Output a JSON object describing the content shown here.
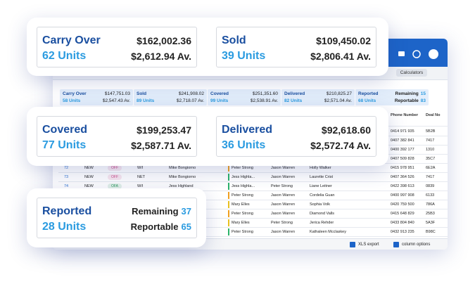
{
  "cards": [
    {
      "boxes": [
        {
          "label": "Carry Over",
          "units": "62 Units",
          "total": "$162,002.36",
          "average": "$2,612.94 Av."
        },
        {
          "label": "Sold",
          "units": "39 Units",
          "total": "$109,450.02",
          "average": "$2,806.41 Av."
        }
      ]
    },
    {
      "boxes": [
        {
          "label": "Covered",
          "units": "77 Units",
          "total": "$199,253.47",
          "average": "$2,587.71 Av."
        },
        {
          "label": "Delivered",
          "units": "36 Units",
          "total": "$92,618.60",
          "average": "$2,572.74 Av."
        }
      ]
    },
    {
      "boxes": [
        {
          "label": "Reported",
          "units": "28 Units",
          "remaining_label": "Remaining",
          "remaining": "37",
          "reportable_label": "Reportable",
          "reportable": "65"
        }
      ]
    }
  ],
  "app": {
    "calculators": "Calculators",
    "summary": [
      {
        "label": "Carry Over",
        "units": "58 Units",
        "total": "$147,751.03",
        "average": "$2,547.43 Av."
      },
      {
        "label": "Sold",
        "units": "89 Units",
        "total": "$241,908.02",
        "average": "$2,718.07 Av."
      },
      {
        "label": "Covered",
        "units": "99 Units",
        "total": "$251,351.60",
        "average": "$2,538.91 Av."
      },
      {
        "label": "Delivered",
        "units": "82 Units",
        "total": "$210,825.27",
        "average": "$2,571.04 Av."
      },
      {
        "label": "Reported",
        "units": "68 Units",
        "remaining_label": "Remaining",
        "remaining": "15",
        "reportable_label": "Reportable",
        "reportable": "83"
      }
    ],
    "table": {
      "headers": {
        "phone": "Phone Number",
        "deal": "Deal No"
      },
      "rows": [
        {
          "phone": "0414 971 935",
          "deal": "5B2B"
        },
        {
          "phone": "0407 382 841",
          "deal": "7417"
        },
        {
          "phone": "0400 392 177",
          "deal": "1310"
        },
        {
          "phone": "0407 509 828",
          "deal": "35C7"
        },
        {
          "id": "72",
          "status": "NEW",
          "tag": "OFF",
          "tag_color": "#d04c8a",
          "type": "W/I",
          "sales": "Mike Bongiorno",
          "manager": "Peter Strong",
          "bar_color": "#f0a020",
          "person": "Jason Warren",
          "customer": "Holly Walker",
          "phone": "0415 978 951",
          "deal": "6E2A"
        },
        {
          "id": "73",
          "status": "NEW",
          "tag": "OFF",
          "tag_color": "#d04c8a",
          "type": "NET",
          "sales": "Mike Bongiorno",
          "manager": "Jess Highla...",
          "bar_color": "#2bb36a",
          "person": "Jason Warren",
          "customer": "Laurette Crist",
          "phone": "0407 364 526",
          "deal": "7417"
        },
        {
          "id": "74",
          "status": "NEW",
          "tag": "OFA",
          "tag_color": "#2a9a5a",
          "type": "W/I",
          "sales": "Jess Highland",
          "manager": "Jess Highla...",
          "bar_color": "#2bb36a",
          "person": "Peter Strong",
          "customer": "Liane Leitner",
          "phone": "0422 398 613",
          "deal": "0839"
        },
        {
          "manager": "Peter Strong",
          "bar_color": "#f0a020",
          "person": "Jason Warren",
          "customer": "Cordelia Guan",
          "phone": "0400 997 908",
          "deal": "6133"
        },
        {
          "manager": "Mary Elles",
          "bar_color": "#e8c020",
          "person": "Jason Warren",
          "customer": "Sophia Volk",
          "phone": "0420 759 500",
          "deal": "786A"
        },
        {
          "manager": "Peter Strong",
          "bar_color": "#f0a020",
          "person": "Jason Warren",
          "customer": "Diamond Valls",
          "phone": "0415 648 829",
          "deal": "25B3"
        },
        {
          "manager": "Mary Elles",
          "bar_color": "#e8c020",
          "person": "Peter Strong",
          "customer": "Jerica Rehder",
          "phone": "0433 804 840",
          "deal": "5A3F"
        },
        {
          "manager": "Peter Strong",
          "bar_color": "#2bb36a",
          "person": "Jason Warren",
          "customer": "Kathaleen Mcclaskey",
          "phone": "0432 913 235",
          "deal": "B98C"
        }
      ]
    },
    "footer": {
      "xls": "XLS export",
      "columns": "column options"
    }
  }
}
